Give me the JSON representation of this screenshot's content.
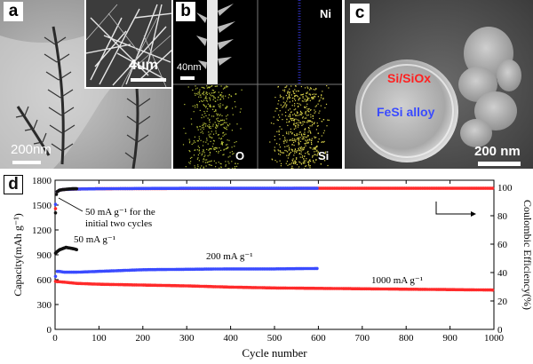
{
  "panel_a": {
    "label": "a",
    "inset_scale": "4um",
    "main_scale": "200nm"
  },
  "panel_b": {
    "label": "b",
    "scale": "40nm",
    "elements": [
      "Ni",
      "O",
      "Si"
    ],
    "colors": {
      "ni": "#2a2aa8",
      "o": "#b8c23a",
      "si": "#d9d24a"
    }
  },
  "panel_c": {
    "label": "c",
    "shell_label": "Si/SiOx",
    "core_label": "FeSi alloy",
    "scale": "200 nm",
    "colors": {
      "shell": "#ff2020",
      "core": "#3a4bff"
    }
  },
  "panel_d": {
    "label": "d",
    "annotations": {
      "first_cycles_line1": "50 mA g⁻¹ for the",
      "first_cycles_line2": "initial two cycles",
      "rate_50": "50 mA g⁻¹",
      "rate_200": "200 mA g⁻¹",
      "rate_1000": "1000 mA g⁻¹"
    }
  },
  "chart_data": {
    "type": "scatter",
    "xlabel": "Cycle number",
    "ylabel": "Capacity(mAh g⁻¹)",
    "y2label": "Coulombic Efficiency(%)",
    "xlim": [
      0,
      1000
    ],
    "ylim": [
      0,
      1800
    ],
    "y2lim": [
      0,
      105
    ],
    "xticks": [
      0,
      100,
      200,
      300,
      400,
      500,
      600,
      700,
      800,
      900,
      1000
    ],
    "yticks": [
      0,
      300,
      600,
      900,
      1200,
      1500,
      1800
    ],
    "y2ticks": [
      0,
      20,
      40,
      60,
      80,
      100
    ],
    "series": [
      {
        "name": "1000 mA g⁻¹",
        "color": "#ff2a2a",
        "capacity": {
          "x": [
            1,
            2,
            3,
            5,
            10,
            20,
            50,
            100,
            200,
            300,
            400,
            500,
            600,
            700,
            800,
            900,
            1000
          ],
          "y": [
            580,
            560,
            570,
            575,
            575,
            570,
            555,
            545,
            535,
            525,
            510,
            500,
            495,
            490,
            485,
            480,
            475
          ]
        },
        "efficiency": {
          "x": [
            1,
            2,
            5,
            10,
            20,
            50,
            100,
            300,
            600,
            800,
            1000
          ],
          "y": [
            85,
            92,
            97,
            98,
            98.5,
            98.8,
            99,
            99.2,
            99.3,
            99.3,
            99.3
          ]
        }
      },
      {
        "name": "200 mA g⁻¹",
        "color": "#3a4bff",
        "capacity": {
          "x": [
            1,
            2,
            3,
            5,
            10,
            20,
            50,
            100,
            200,
            300,
            400,
            500,
            600
          ],
          "y": [
            640,
            660,
            680,
            700,
            700,
            690,
            690,
            700,
            720,
            725,
            730,
            730,
            735
          ]
        },
        "efficiency": {
          "x": [
            1,
            2,
            5,
            10,
            20,
            50,
            100,
            200,
            300,
            400,
            500,
            600
          ],
          "y": [
            88,
            93,
            97,
            98,
            98.5,
            98.8,
            99,
            99.2,
            99.3,
            99.3,
            99.3,
            99.3
          ]
        }
      },
      {
        "name": "50 mA g⁻¹",
        "color": "#111111",
        "capacity": {
          "x": [
            1,
            2,
            3,
            5,
            10,
            15,
            20,
            25,
            30,
            35,
            40,
            45,
            50
          ],
          "y": [
            920,
            900,
            930,
            940,
            960,
            970,
            980,
            990,
            985,
            980,
            975,
            970,
            960
          ]
        },
        "efficiency": {
          "x": [
            1,
            2,
            3,
            5,
            10,
            20,
            30,
            40,
            50
          ],
          "y": [
            82,
            90,
            95,
            97,
            98,
            98.5,
            98.8,
            99,
            99
          ]
        }
      }
    ]
  }
}
